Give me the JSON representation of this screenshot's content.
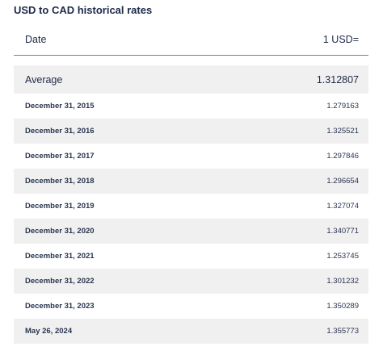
{
  "title": "USD to CAD historical rates",
  "table": {
    "header": [
      "Date",
      "1 USD="
    ],
    "average": [
      "Average",
      "1.312807"
    ],
    "rows": [
      [
        "December 31, 2015",
        "1.279163"
      ],
      [
        "December 31, 2016",
        "1.325521"
      ],
      [
        "December 31, 2017",
        "1.297846"
      ],
      [
        "December 31, 2018",
        "1.296654"
      ],
      [
        "December 31, 2019",
        "1.327074"
      ],
      [
        "December 31, 2020",
        "1.340771"
      ],
      [
        "December 31, 2021",
        "1.253745"
      ],
      [
        "December 31, 2022",
        "1.301232"
      ],
      [
        "December 31, 2023",
        "1.350289"
      ],
      [
        "May 26, 2024",
        "1.355773"
      ]
    ]
  }
}
